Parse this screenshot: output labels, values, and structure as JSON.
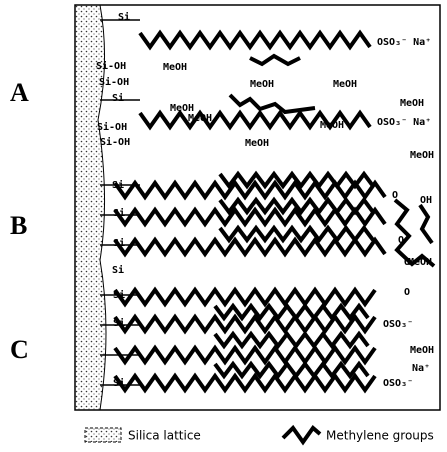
{
  "sections": [
    "A",
    "B",
    "C"
  ],
  "surface": [
    "Si",
    "Si-OH",
    "Si-OH",
    "Si",
    "Si-OH",
    "Si-OH",
    "Si",
    "Si",
    "Si",
    "Si",
    "Si",
    "Si",
    "Si"
  ],
  "solvent": [
    "MeOH",
    "MeOH",
    "MeOH",
    "MeOH",
    "MeOH",
    "MeOH",
    "MeOH",
    "MeOH",
    "MeOH",
    "MeOH",
    "MeOH"
  ],
  "heads": [
    "OSO₃⁻ Na⁺",
    "OSO₃⁻ Na⁺",
    "OSO₃⁻",
    "OSO₃⁻",
    "Na⁺"
  ],
  "ether": [
    "O",
    "O",
    "O",
    "O",
    "OH"
  ],
  "legend": [
    "Silica lattice",
    "Methylene groups"
  ]
}
